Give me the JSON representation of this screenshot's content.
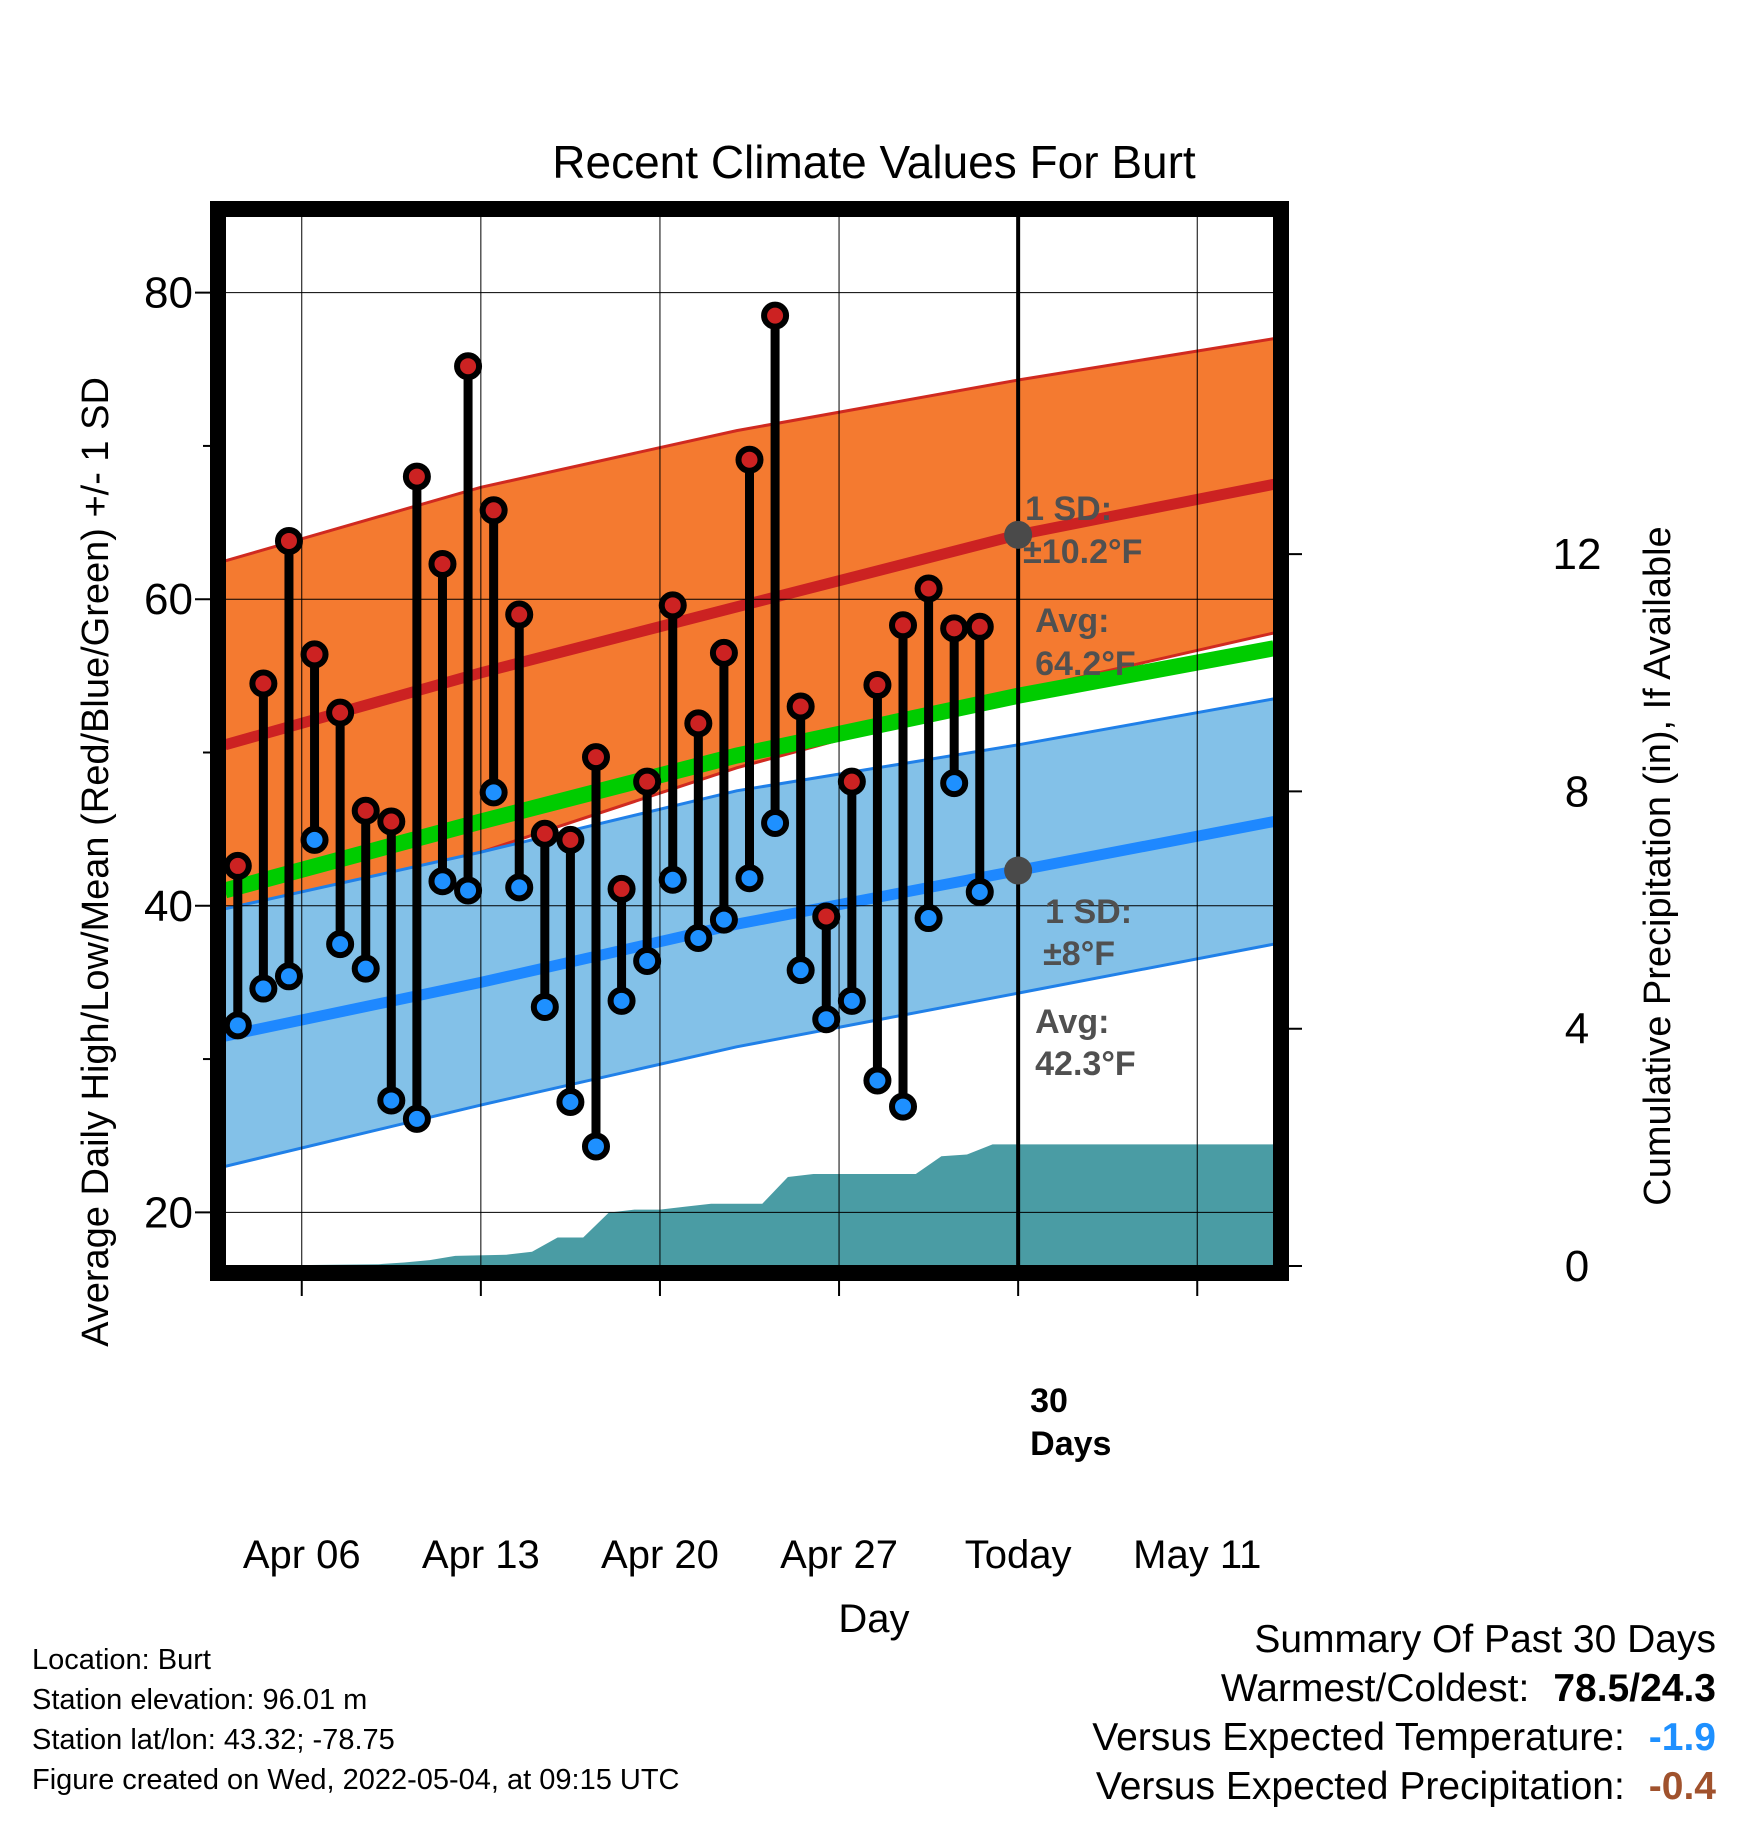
{
  "chart_data": {
    "type": "line",
    "title": "Recent Climate Values For Burt",
    "xlabel": "Day",
    "ylabel": "Average Daily High/Low/Mean (Red/Blue/Green) +/- 1 SD",
    "y2label": "Cumulative Precipitation (in), If Available",
    "ylim": [
      16.5,
      85
    ],
    "y2lim": [
      0,
      17.7
    ],
    "yticks": [
      20,
      40,
      60,
      80
    ],
    "y2ticks": [
      0,
      4,
      8,
      12
    ],
    "xlim": [
      "2022-04-03",
      "2022-05-14"
    ],
    "xticks": [
      {
        "date": "2022-04-06",
        "label": "Apr 06"
      },
      {
        "date": "2022-04-13",
        "label": "Apr 13"
      },
      {
        "date": "2022-04-20",
        "label": "Apr 20"
      },
      {
        "date": "2022-04-27",
        "label": "Apr 27"
      },
      {
        "date": "2022-05-04",
        "label": "Today"
      },
      {
        "date": "2022-05-11",
        "label": "May 11"
      }
    ],
    "grid": true,
    "today": "2022-05-04",
    "normals": {
      "dates": [
        "2022-04-03",
        "2022-04-13",
        "2022-04-23",
        "2022-05-04",
        "2022-05-14"
      ],
      "high_avg": [
        50.5,
        55.2,
        59.5,
        64.2,
        67.5
      ],
      "high_plus_sd": [
        62.5,
        67.3,
        71.0,
        74.3,
        77.0
      ],
      "high_minus_sd": [
        39.0,
        43.5,
        49.0,
        54.0,
        57.8
      ],
      "low_avg": [
        31.5,
        35.0,
        38.8,
        42.3,
        45.5
      ],
      "low_plus_sd": [
        39.8,
        43.5,
        47.5,
        50.5,
        53.5
      ],
      "low_minus_sd": [
        23.0,
        27.0,
        30.8,
        34.3,
        37.5
      ],
      "mean_avg": [
        41.0,
        45.5,
        49.8,
        53.7,
        56.8
      ]
    },
    "daily": {
      "dates": [
        "2022-04-04",
        "2022-04-05",
        "2022-04-06",
        "2022-04-07",
        "2022-04-08",
        "2022-04-09",
        "2022-04-10",
        "2022-04-11",
        "2022-04-12",
        "2022-04-13",
        "2022-04-14",
        "2022-04-15",
        "2022-04-16",
        "2022-04-17",
        "2022-04-18",
        "2022-04-19",
        "2022-04-20",
        "2022-04-21",
        "2022-04-22",
        "2022-04-23",
        "2022-04-24",
        "2022-04-25",
        "2022-04-26",
        "2022-04-27",
        "2022-04-28",
        "2022-04-29",
        "2022-04-30",
        "2022-05-01",
        "2022-05-02",
        "2022-05-03"
      ],
      "high": [
        42.6,
        54.5,
        63.8,
        56.4,
        52.6,
        46.2,
        45.5,
        68.0,
        62.3,
        75.2,
        65.8,
        59.0,
        44.7,
        44.3,
        49.7,
        41.1,
        48.1,
        59.6,
        51.9,
        56.5,
        69.1,
        78.5,
        53.0,
        39.3,
        48.1,
        54.4,
        58.3,
        60.7,
        58.1,
        58.2
      ],
      "low": [
        32.2,
        34.6,
        35.4,
        44.3,
        37.5,
        35.9,
        27.3,
        26.1,
        41.6,
        41.0,
        47.4,
        41.2,
        33.4,
        27.2,
        24.3,
        33.8,
        36.4,
        41.7,
        37.9,
        39.1,
        41.8,
        45.4,
        35.8,
        32.6,
        33.8,
        28.6,
        26.9,
        39.2,
        48.0,
        40.9
      ]
    },
    "precip_cum": {
      "dates": [
        "2022-04-03",
        "2022-04-09",
        "2022-04-10",
        "2022-04-11",
        "2022-04-12",
        "2022-04-14",
        "2022-04-15",
        "2022-04-16",
        "2022-04-17",
        "2022-04-18",
        "2022-04-19",
        "2022-04-20",
        "2022-04-21",
        "2022-04-22",
        "2022-04-24",
        "2022-04-25",
        "2022-04-26",
        "2022-04-27",
        "2022-04-30",
        "2022-05-01",
        "2022-05-02",
        "2022-05-03",
        "2022-05-04",
        "2022-05-14"
      ],
      "values": [
        0,
        0.03,
        0.06,
        0.1,
        0.17,
        0.19,
        0.24,
        0.48,
        0.48,
        0.9,
        0.95,
        0.95,
        1.0,
        1.05,
        1.05,
        1.5,
        1.55,
        1.55,
        1.55,
        1.85,
        1.88,
        2.05,
        2.05,
        2.05
      ]
    },
    "annotations": {
      "high_sd": "1 SD:",
      "high_sd_value": "±10.2°F",
      "high_avg_label": "Avg:",
      "high_avg_value": "64.2°F",
      "low_sd": "1 SD:",
      "low_sd_value": "±8°F",
      "low_avg_label": "Avg:",
      "low_avg_value": "42.3°F",
      "days_count": "30",
      "days_unit": "Days"
    },
    "colors": {
      "high_band": "#f47a30",
      "high_band_edge": "#d02a20",
      "high_line": "#cc2222",
      "low_band": "#83c1e8",
      "low_band_edge": "#2080e8",
      "low_line": "#1e88ff",
      "mean_line": "#00cc00",
      "precip_fill": "#4a9ca4",
      "high_dot": "#cc2222",
      "low_dot": "#1e90ff",
      "avg_marker": "#4a4a4a"
    }
  },
  "info": {
    "location": "Location: Burt",
    "elevation": "Station elevation: 96.01 m",
    "latlon": "Station lat/lon: 43.32; -78.75",
    "created": "Figure created on Wed, 2022-05-04, at 09:15 UTC"
  },
  "summary": {
    "title": "Summary Of Past 30 Days",
    "warm_cold_label": "Warmest/Coldest:",
    "warm_cold_value": "78.5/24.3",
    "temp_label": "Versus Expected Temperature:",
    "temp_value": "-1.9",
    "precip_label": "Versus Expected Precipitation:",
    "precip_value": "-0.4",
    "temp_color": "#1e90ff",
    "precip_color": "#a0522d"
  }
}
